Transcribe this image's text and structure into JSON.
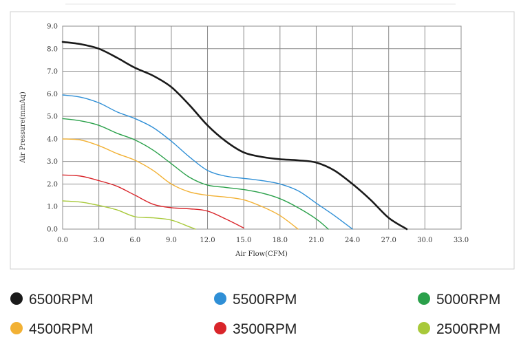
{
  "chart_data": {
    "type": "line",
    "xlabel": "Air Flow(CFM)",
    "ylabel": "Air Pressure(mmAq)",
    "xlim": [
      0,
      33
    ],
    "ylim": [
      0,
      9
    ],
    "x_ticks": [
      "0.0",
      "3.0",
      "6.0",
      "9.0",
      "12.0",
      "15.0",
      "18.0",
      "21.0",
      "24.0",
      "27.0",
      "30.0",
      "33.0"
    ],
    "y_ticks": [
      "0.0",
      "1.0",
      "2.0",
      "3.0",
      "4.0",
      "5.0",
      "6.0",
      "7.0",
      "8.0",
      "9.0"
    ],
    "grid": true,
    "legend_placement": "bottom",
    "series": [
      {
        "name": "6500RPM",
        "color": "#1a1a1a",
        "points": [
          [
            0,
            8.3
          ],
          [
            1.5,
            8.2
          ],
          [
            3,
            8.0
          ],
          [
            4.5,
            7.6
          ],
          [
            6,
            7.15
          ],
          [
            7.5,
            6.8
          ],
          [
            9,
            6.3
          ],
          [
            10.5,
            5.5
          ],
          [
            12,
            4.6
          ],
          [
            13.5,
            3.9
          ],
          [
            15,
            3.4
          ],
          [
            16.5,
            3.2
          ],
          [
            18,
            3.1
          ],
          [
            19.5,
            3.05
          ],
          [
            21,
            2.95
          ],
          [
            22.5,
            2.6
          ],
          [
            24,
            2.0
          ],
          [
            25.5,
            1.3
          ],
          [
            27,
            0.5
          ],
          [
            28.5,
            0.0
          ]
        ]
      },
      {
        "name": "5500RPM",
        "color": "#2f8fd6",
        "points": [
          [
            0,
            5.95
          ],
          [
            1.5,
            5.85
          ],
          [
            3,
            5.6
          ],
          [
            4.5,
            5.2
          ],
          [
            6,
            4.9
          ],
          [
            7.5,
            4.5
          ],
          [
            9,
            3.9
          ],
          [
            10.5,
            3.2
          ],
          [
            12,
            2.6
          ],
          [
            13.5,
            2.35
          ],
          [
            15,
            2.25
          ],
          [
            16.5,
            2.15
          ],
          [
            18,
            2.0
          ],
          [
            19.5,
            1.7
          ],
          [
            21,
            1.15
          ],
          [
            22.5,
            0.6
          ],
          [
            24,
            0.0
          ]
        ]
      },
      {
        "name": "5000RPM",
        "color": "#2aa04a",
        "points": [
          [
            0,
            4.9
          ],
          [
            1.5,
            4.8
          ],
          [
            3,
            4.6
          ],
          [
            4.5,
            4.25
          ],
          [
            6,
            3.95
          ],
          [
            7.5,
            3.5
          ],
          [
            9,
            2.9
          ],
          [
            10.5,
            2.3
          ],
          [
            12,
            1.95
          ],
          [
            13.5,
            1.85
          ],
          [
            15,
            1.75
          ],
          [
            16.5,
            1.6
          ],
          [
            18,
            1.35
          ],
          [
            19.5,
            0.95
          ],
          [
            21,
            0.45
          ],
          [
            22,
            0.0
          ]
        ]
      },
      {
        "name": "4500RPM",
        "color": "#f2b134",
        "points": [
          [
            0,
            4.0
          ],
          [
            1.5,
            3.95
          ],
          [
            3,
            3.7
          ],
          [
            4.5,
            3.35
          ],
          [
            6,
            3.05
          ],
          [
            7.5,
            2.6
          ],
          [
            9,
            2.0
          ],
          [
            10.5,
            1.65
          ],
          [
            12,
            1.5
          ],
          [
            13.5,
            1.42
          ],
          [
            15,
            1.3
          ],
          [
            16.5,
            1.0
          ],
          [
            18,
            0.6
          ],
          [
            19.5,
            0.0
          ]
        ]
      },
      {
        "name": "3500RPM",
        "color": "#d9252a",
        "points": [
          [
            0,
            2.4
          ],
          [
            1.5,
            2.35
          ],
          [
            3,
            2.15
          ],
          [
            4.5,
            1.9
          ],
          [
            6,
            1.5
          ],
          [
            7.5,
            1.1
          ],
          [
            9,
            0.95
          ],
          [
            10.5,
            0.9
          ],
          [
            12,
            0.8
          ],
          [
            13.5,
            0.45
          ],
          [
            15,
            0.05
          ]
        ]
      },
      {
        "name": "2500RPM",
        "color": "#a8c93a",
        "points": [
          [
            0,
            1.25
          ],
          [
            1.5,
            1.2
          ],
          [
            3,
            1.05
          ],
          [
            4.5,
            0.85
          ],
          [
            6,
            0.55
          ],
          [
            7.5,
            0.5
          ],
          [
            9,
            0.4
          ],
          [
            10.5,
            0.1
          ],
          [
            11,
            0.0
          ]
        ]
      }
    ]
  }
}
